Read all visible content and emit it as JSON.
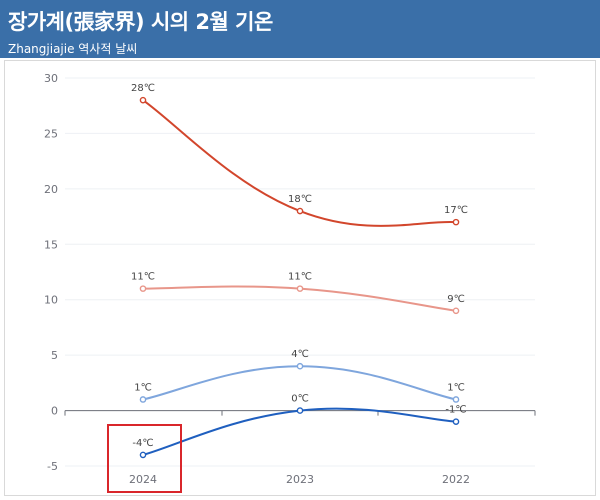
{
  "header": {
    "title": "장가계(張家界) 시의 2월 기온",
    "subtitle": "Zhangjiajie 역사적 날씨"
  },
  "colors": {
    "header_bg": "#3a6fa8",
    "highlight": "#d9262b"
  },
  "chart_data": {
    "type": "line",
    "title": "장가계(張家界) 시의 2월 기온",
    "subtitle": "Zhangjiajie 역사적 날씨",
    "categories": [
      "2024",
      "2023",
      "2022"
    ],
    "yticks": [
      -5,
      0,
      5,
      10,
      15,
      20,
      25,
      30
    ],
    "ylim": [
      -5,
      30
    ],
    "grid": true,
    "unit": "℃",
    "smooth": true,
    "series": [
      {
        "values": [
          28,
          18,
          17
        ],
        "color": "#d2462c"
      },
      {
        "values": [
          11,
          11,
          9
        ],
        "color": "#e8968a"
      },
      {
        "values": [
          1,
          4,
          1
        ],
        "color": "#7fa6dd"
      },
      {
        "values": [
          -4,
          0,
          -1
        ],
        "color": "#1f5fbf"
      }
    ],
    "highlight_category": "2024"
  }
}
